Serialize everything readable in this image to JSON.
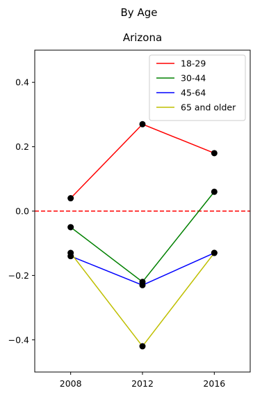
{
  "suptitle": "By Age",
  "chart_data": {
    "type": "line",
    "title": "Arizona",
    "xlabel": "",
    "ylabel": "",
    "x": [
      2008,
      2012,
      2016
    ],
    "xlim": [
      2006,
      2018
    ],
    "ylim": [
      -0.5,
      0.5
    ],
    "xticks": [
      2008,
      2012,
      2016
    ],
    "yticks": [
      -0.4,
      -0.2,
      0.0,
      0.2,
      0.4
    ],
    "ytick_labels": [
      "−0.4",
      "−0.2",
      "0.0",
      "0.2",
      "0.4"
    ],
    "grid": false,
    "legend_position": "top-right",
    "reference_line": {
      "y": 0.0,
      "color": "#ff0000",
      "style": "dashed"
    },
    "marker_color": "#000000",
    "series": [
      {
        "name": "18-29",
        "color": "#ff0000",
        "values": [
          0.04,
          0.27,
          0.18
        ]
      },
      {
        "name": "30-44",
        "color": "#008000",
        "values": [
          -0.05,
          -0.22,
          0.06
        ]
      },
      {
        "name": "45-64",
        "color": "#0000ff",
        "values": [
          -0.14,
          -0.23,
          -0.13
        ]
      },
      {
        "name": "65 and older",
        "color": "#bfbf00",
        "values": [
          -0.13,
          -0.42,
          -0.13
        ]
      }
    ]
  }
}
